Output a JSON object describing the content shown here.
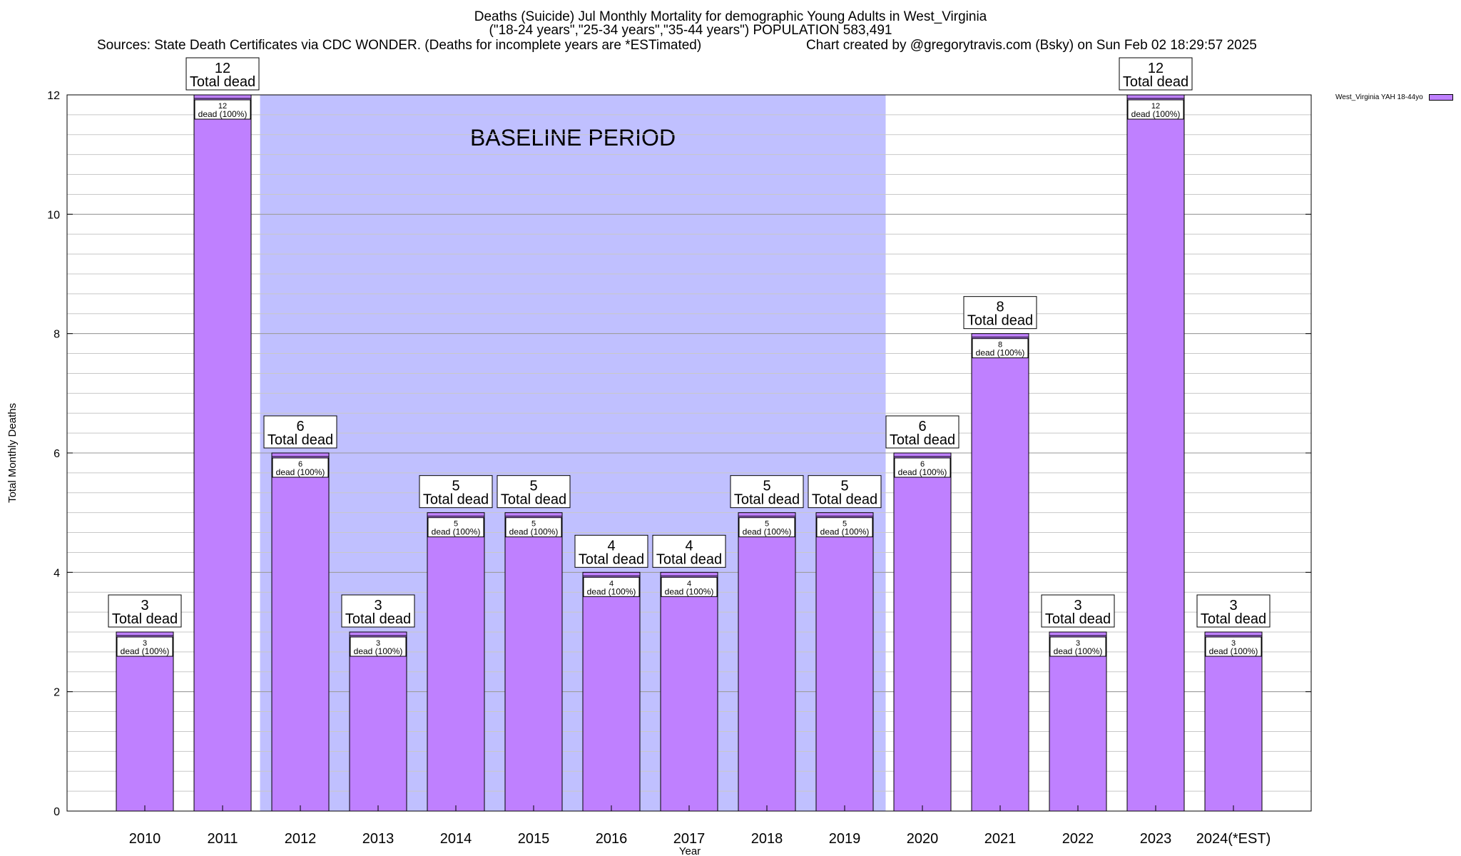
{
  "chart": {
    "title_line1": "Deaths (Suicide) Jul Monthly Mortality for demographic Young Adults in West_Virginia",
    "title_line2": "(\"18-24 years\",\"25-34 years\",\"35-44 years\") POPULATION 583,491",
    "sources": "Sources: State Death Certificates via CDC WONDER. (Deaths for incomplete years are *ESTimated)",
    "credit": "Chart created by @gregorytravis.com (Bsky) on Sun Feb 02 18:29:57 2025",
    "baseline_label": "BASELINE PERIOD",
    "total_label": "Total dead",
    "dead_pct_label": "dead (100%)"
  },
  "colors": {
    "bar": "#bf80ff",
    "baseline": "#c0c0ff",
    "grid": "#c8c8c8"
  },
  "chart_data": {
    "type": "bar",
    "xlabel": "Year",
    "ylabel": "Total Monthly Deaths",
    "ylim": [
      0,
      12
    ],
    "yticks": [
      0,
      2,
      4,
      6,
      8,
      10,
      12
    ],
    "categories": [
      "2010",
      "2011",
      "2012",
      "2013",
      "2014",
      "2015",
      "2016",
      "2017",
      "2018",
      "2019",
      "2020",
      "2021",
      "2022",
      "2023",
      "2024(*EST)"
    ],
    "series": [
      {
        "name": "West_Virginia YAH 18-44yo",
        "values": [
          3,
          12,
          6,
          3,
          5,
          5,
          4,
          4,
          5,
          5,
          6,
          8,
          3,
          12,
          3
        ]
      }
    ],
    "baseline_range": [
      "2012",
      "2019"
    ],
    "grid": true,
    "legend_position": "top-right"
  }
}
